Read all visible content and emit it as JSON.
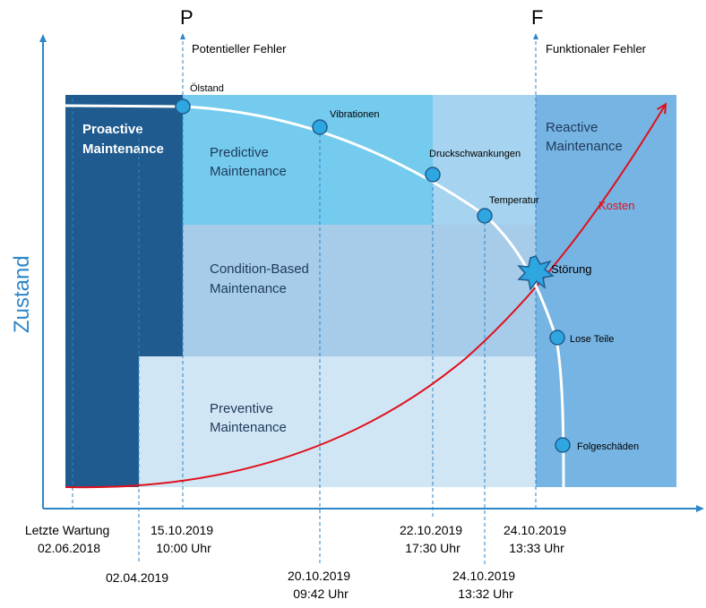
{
  "axis": {
    "y_title": "Zustand"
  },
  "markers": {
    "p": {
      "letter": "P",
      "caption": "Potentieller Fehler"
    },
    "f": {
      "letter": "F",
      "caption": "Funktionaler Fehler"
    }
  },
  "zones": {
    "proactive": [
      "Proactive",
      "Maintenance"
    ],
    "predictive": [
      "Predictive",
      "Maintenance"
    ],
    "condition": [
      "Condition-Based",
      "Maintenance"
    ],
    "preventive": [
      "Preventive",
      "Maintenance"
    ],
    "reactive": [
      "Reactive",
      "Maintenance"
    ]
  },
  "events": {
    "oelstand": "Ölstand",
    "vibrationen": "Vibrationen",
    "druckschwankungen": "Druckschwankungen",
    "temperatur": "Temperatur",
    "stoerung": "Störung",
    "lose_teile": "Lose Teile",
    "folgeschaeden": "Folgeschäden"
  },
  "cost_label": "Kosten",
  "dates": {
    "letzte_wartung": [
      "Letzte Wartung",
      "02.06.2018"
    ],
    "d_02_04_2019": [
      "02.04.2019"
    ],
    "d_15_10_2019": [
      "15.10.2019",
      "10:00 Uhr"
    ],
    "d_20_10_2019": [
      "20.10.2019",
      "09:42 Uhr"
    ],
    "d_22_10_2019": [
      "22.10.2019",
      "17:30 Uhr"
    ],
    "d_24_10_2019_a": [
      "24.10.2019",
      "13:32 Uhr"
    ],
    "d_24_10_2019_b": [
      "24.10.2019",
      "13:33 Uhr"
    ]
  },
  "colors": {
    "proactive": "#1f5b8e",
    "predictive": "#74cbee",
    "predictive_light": "#a6d3ef",
    "condition": "#a6ccea",
    "preventive": "#d1e6f5",
    "reactive": "#76b4e3",
    "condition_curve": "#ffffff",
    "cost_curve": "#e0101c",
    "event_dot": "#2ea6e0",
    "axis": "#2e86c8",
    "guide": "#2e86c8"
  }
}
